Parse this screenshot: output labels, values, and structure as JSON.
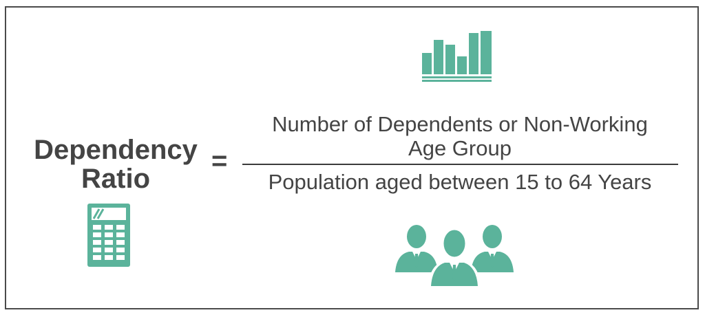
{
  "formula": {
    "lhs_line1": "Dependency",
    "lhs_line2": "Ratio",
    "equals": "=",
    "numerator_line1": "Number of Dependents or Non-Working",
    "numerator_line2": "Age Group",
    "denominator": "Population aged between 15 to 64 Years"
  },
  "colors": {
    "accent": "#5bb39b",
    "text": "#444444",
    "border": "#4a4a4a"
  },
  "icons": {
    "top": "bar-chart-icon",
    "left": "calculator-icon",
    "bottom": "business-people-icon"
  }
}
